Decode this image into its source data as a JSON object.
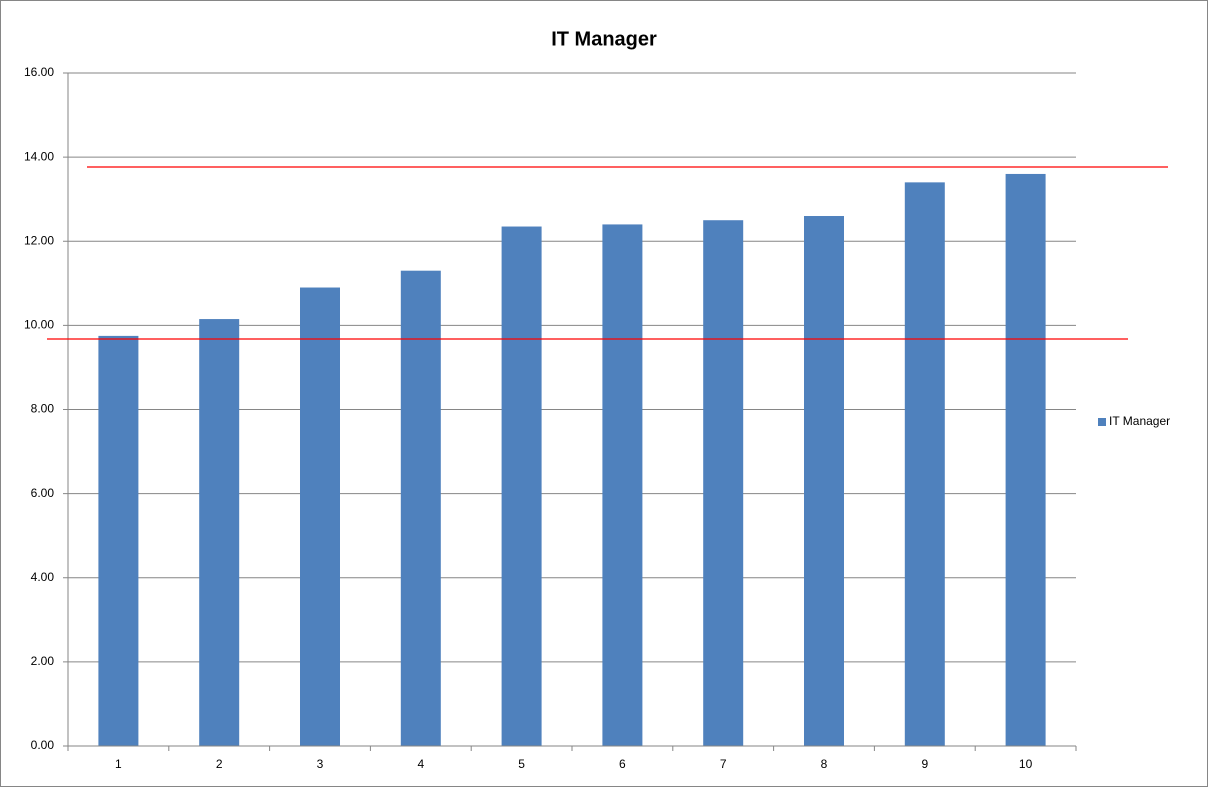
{
  "chart_data": {
    "type": "bar",
    "title": "IT Manager",
    "categories": [
      "1",
      "2",
      "3",
      "4",
      "5",
      "6",
      "7",
      "8",
      "9",
      "10"
    ],
    "series": [
      {
        "name": "IT Manager",
        "color": "#4f81bd",
        "values": [
          9.75,
          10.15,
          10.9,
          11.3,
          12.35,
          12.4,
          12.5,
          12.6,
          13.4,
          13.6
        ]
      }
    ],
    "ylim": [
      0,
      16
    ],
    "yticks": [
      {
        "value": 0,
        "label": "0.00"
      },
      {
        "value": 2,
        "label": "2.00"
      },
      {
        "value": 4,
        "label": "4.00"
      },
      {
        "value": 6,
        "label": "6.00"
      },
      {
        "value": 8,
        "label": "8.00"
      },
      {
        "value": 10,
        "label": "10.00"
      },
      {
        "value": 12,
        "label": "12.00"
      },
      {
        "value": 14,
        "label": "14.00"
      },
      {
        "value": 16,
        "label": "16.00"
      }
    ],
    "grid": true,
    "legend": "right"
  }
}
